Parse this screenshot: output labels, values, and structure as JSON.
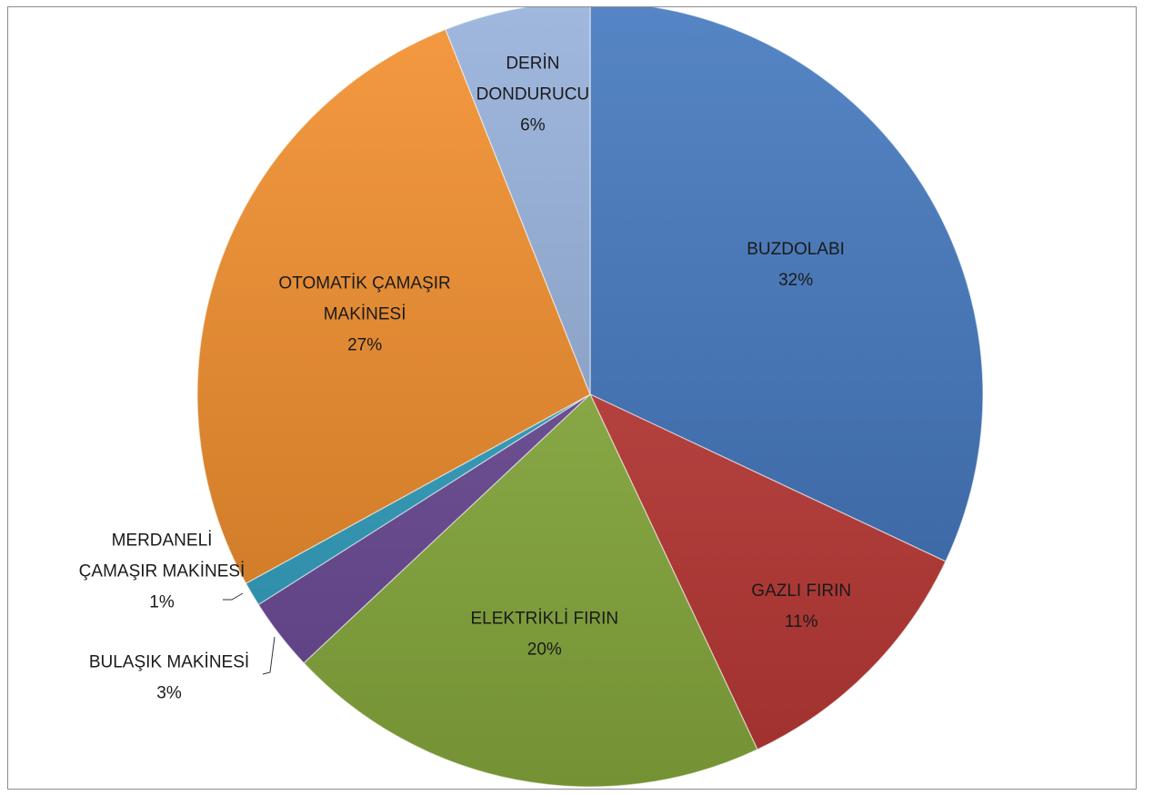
{
  "chart_data": {
    "type": "pie",
    "title": "",
    "slices": [
      {
        "name": "BUZDOLABI",
        "line1": "BUZDOLABI",
        "line2": "",
        "pct_label": "32%",
        "value": 32,
        "color": "#3F74BD"
      },
      {
        "name": "GAZLI FIRIN",
        "line1": "GAZLI FIRIN",
        "line2": "",
        "pct_label": "11%",
        "value": 11,
        "color": "#C23A37"
      },
      {
        "name": "ELEKTRİKLİ FIRIN",
        "line1": "ELEKTRİKLİ FIRIN",
        "line2": "",
        "pct_label": "20%",
        "value": 20,
        "color": "#8DB23F"
      },
      {
        "name": "BULAŞIK MAKİNESİ",
        "line1": "BULAŞIK MAKİNESİ",
        "line2": "",
        "pct_label": "3%",
        "value": 3,
        "color": "#6E4B9A"
      },
      {
        "name": "MERDANELİ ÇAMAŞIR MAKİNESİ",
        "line1": "MERDANELİ",
        "line2": "ÇAMAŞIR MAKİNESİ",
        "pct_label": "1%",
        "value": 1,
        "color": "#31A3C4"
      },
      {
        "name": "OTOMATİK ÇAMAŞIR MAKİNESİ",
        "line1": "OTOMATİK ÇAMAŞIR",
        "line2": "MAKİNESİ",
        "pct_label": "27%",
        "value": 27,
        "color": "#F28C28"
      },
      {
        "name": "DERİN DONDURUCU",
        "line1": "DERİN",
        "line2": "DONDURUCU",
        "pct_label": "6%",
        "value": 6,
        "color": "#93AED9"
      }
    ],
    "start_angle": "12 o'clock",
    "direction": "clockwise",
    "data_labels": "category name and percentage",
    "legend": "none"
  }
}
